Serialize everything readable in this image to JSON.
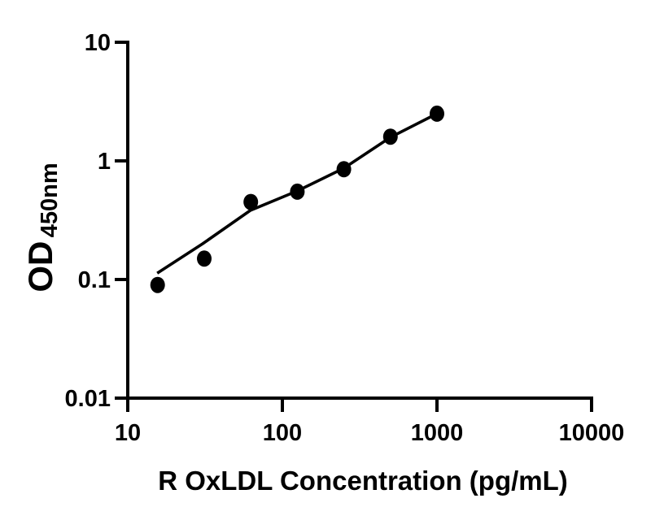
{
  "chart_data": {
    "type": "scatter",
    "title": "",
    "xlabel": "R OxLDL Concentration (pg/mL)",
    "ylabel": "OD",
    "ylabel_subscript": "450nm",
    "x_scale": "log",
    "y_scale": "log",
    "xlim": [
      10,
      10000
    ],
    "ylim": [
      0.01,
      10
    ],
    "x_ticks": [
      10,
      100,
      1000,
      10000
    ],
    "y_ticks": [
      10,
      1,
      0.1,
      0.01
    ],
    "grid": false,
    "legend": false,
    "colors": {
      "points": "#000000",
      "line": "#000000",
      "axis": "#000000",
      "background": "#ffffff"
    },
    "series": [
      {
        "name": "standards",
        "type": "scatter",
        "marker": "filled-circle",
        "x": [
          15.6,
          31.25,
          62.5,
          125,
          250,
          500,
          1000
        ],
        "y": [
          0.09,
          0.15,
          0.45,
          0.55,
          0.85,
          1.6,
          2.5
        ]
      },
      {
        "name": "fit-line",
        "type": "line",
        "x": [
          15.5,
          30.5,
          62,
          125,
          250,
          500,
          1000
        ],
        "y": [
          0.113,
          0.2,
          0.382,
          0.558,
          0.868,
          1.58,
          2.5
        ]
      }
    ]
  }
}
